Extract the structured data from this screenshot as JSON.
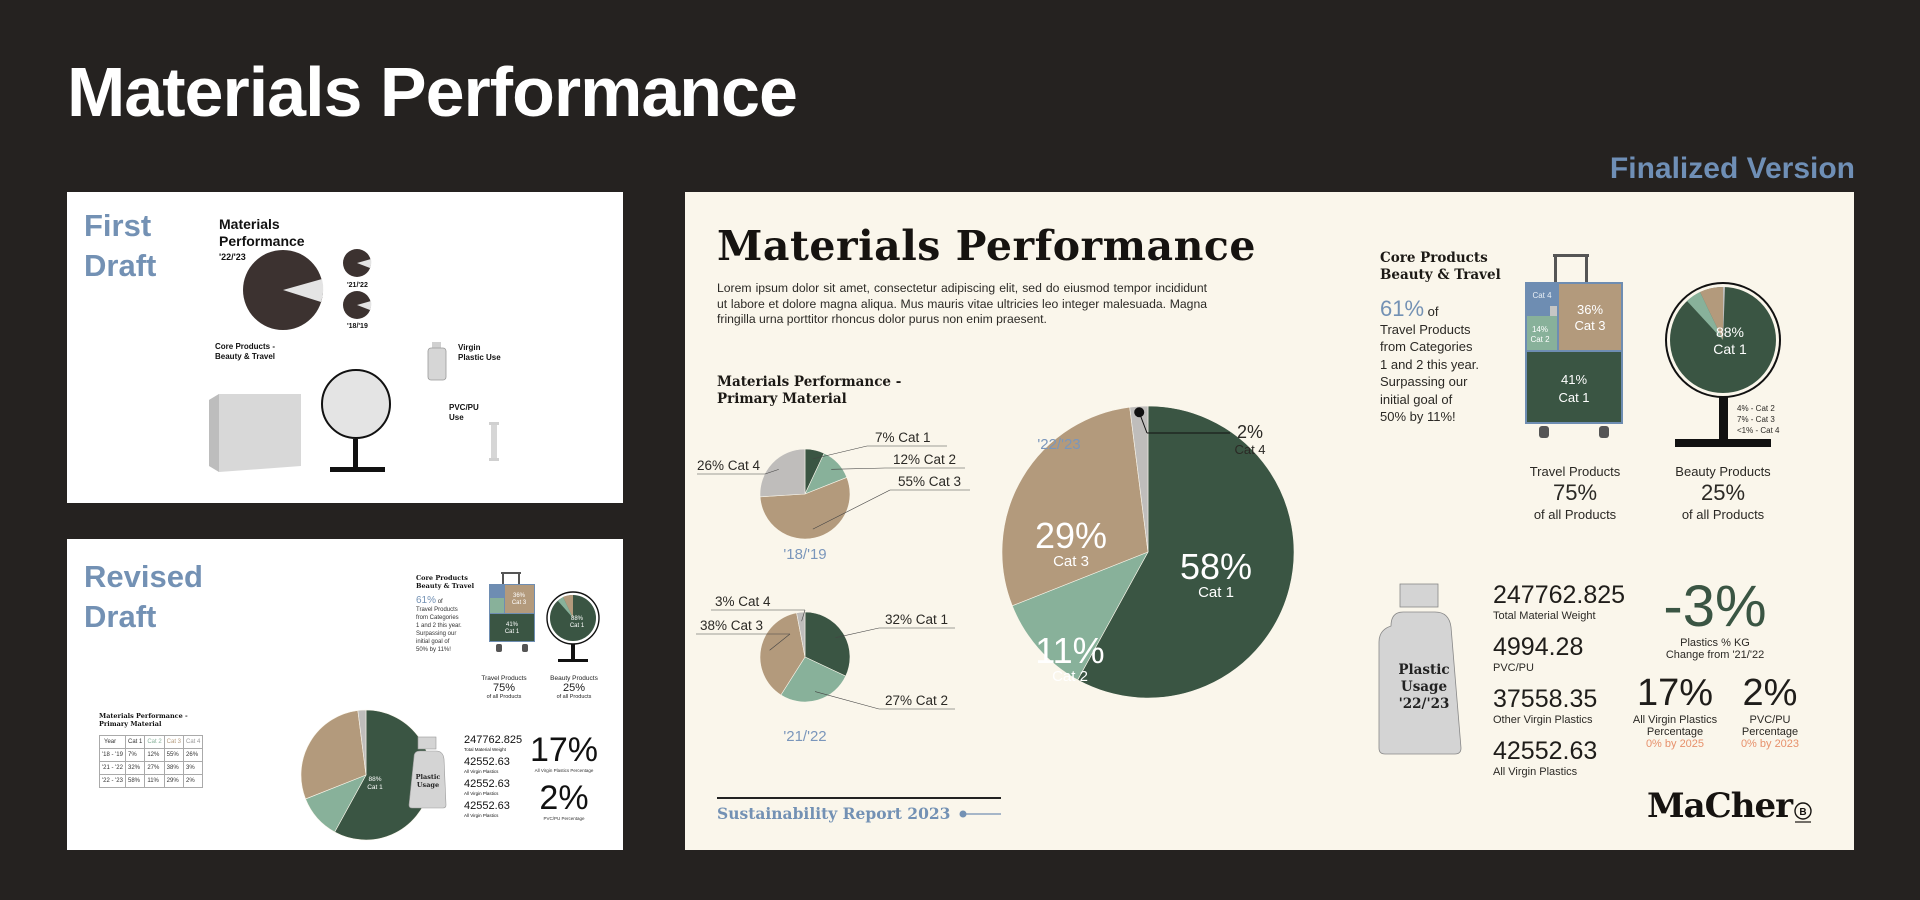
{
  "page": {
    "title": "Materials Performance",
    "finalized_label": "Finalized Version",
    "first_draft_label": [
      "First",
      "Draft"
    ],
    "revised_draft_label": [
      "Revised",
      "Draft"
    ]
  },
  "first_draft": {
    "title": [
      "Materials",
      "Performance"
    ],
    "year_main": "'22/'23",
    "year_a": "'21/'22",
    "year_b": "'18/'19",
    "core_products": [
      "Core Products -",
      "Beauty & Travel"
    ],
    "virgin_plastic": [
      "Virgin",
      "Plastic Use"
    ],
    "pvc_pu": [
      "PVC/PU",
      "Use"
    ]
  },
  "revised_draft": {
    "core_title": [
      "Core Products",
      "Beauty & Travel"
    ],
    "pct_61": "61%",
    "pct_61_rest": "of",
    "travel_desc": [
      "Travel Products",
      "from Categories",
      "1 and 2 this year.",
      "Surpassing  our",
      "initial   goal   of",
      "50% by 11%!"
    ],
    "bag_cat3": [
      "36%",
      "Cat 3"
    ],
    "bag_cat1": [
      "41%",
      "Cat 1"
    ],
    "mirror_pct": [
      "88%",
      "Cat 1"
    ],
    "travel_label": "Travel Products",
    "travel_pct": "75%",
    "travel_sub": "of all Products",
    "beauty_label": "Beauty Products",
    "beauty_pct": "25%",
    "beauty_sub": "of all Products",
    "table_title": [
      "Materials Performance -",
      "Primary Material"
    ],
    "table_header": [
      "Year",
      "Cat 1",
      "Cat 2",
      "Cat 3",
      "Cat 4"
    ],
    "table_rows": [
      [
        "'18 - '19",
        "7%",
        "12%",
        "55%",
        "26%"
      ],
      [
        "'21 - '22",
        "32%",
        "27%",
        "38%",
        "3%"
      ],
      [
        "'22 - '23",
        "58%",
        "11%",
        "29%",
        "2%"
      ]
    ],
    "pie_label": [
      "88%",
      "Cat 1"
    ],
    "bottle_label": [
      "Plastic",
      "Usage"
    ],
    "stats": [
      {
        "value": "247762.825",
        "label": "Total Material Weight"
      },
      {
        "value": "42552.63",
        "label": "All Virgin Plastics"
      },
      {
        "value": "42552.63",
        "label": "All Virgin Plastics"
      },
      {
        "value": "42552.63",
        "label": "All Virgin Plastics"
      }
    ],
    "big1": "17%",
    "big1_label": "All Virgin Plastics Percentage",
    "big2": "2%",
    "big2_label": "PVC/PU Percentage"
  },
  "final": {
    "title": "Materials Performance",
    "lorem": "Lorem ipsum dolor sit amet, consectetur adipiscing elit, sed do eiusmod tempor incididunt ut labore et dolore magna aliqua. Mus mauris vitae ultricies leo integer malesuada. Magna fringilla urna porttitor rhoncus dolor purus non enim praesent.",
    "primary_title": [
      "Materials Performance -",
      "Primary Material"
    ],
    "footer": "Sustainability Report 2023",
    "logo": "MaCher",
    "core_title": [
      "Core Products",
      "Beauty & Travel"
    ],
    "pct_61": "61%",
    "pct_61_rest": "of",
    "travel_desc": [
      "Travel Products",
      "from Categories",
      "1 and 2 this year.",
      "Surpassing  our",
      "initial   goal   of",
      "50% by 11%!"
    ],
    "bag": {
      "cat4": "Cat 4",
      "cat3": [
        "36%",
        "Cat 3"
      ],
      "cat2": [
        "14%",
        "Cat 2"
      ],
      "cat1": [
        "41%",
        "Cat 1"
      ]
    },
    "mirror": {
      "main": [
        "88%",
        "Cat 1"
      ],
      "legend": [
        "4% - Cat 2",
        "7% - Cat 3",
        "<1% - Cat 4"
      ]
    },
    "travel_label": "Travel Products",
    "travel_pct": "75%",
    "travel_sub": "of all Products",
    "beauty_label": "Beauty Products",
    "beauty_pct": "25%",
    "beauty_sub": "of all Products",
    "bottle_label": [
      "Plastic",
      "Usage",
      "'22/'23"
    ],
    "stats": [
      {
        "value": "247762.825",
        "label": "Total Material Weight"
      },
      {
        "value": "4994.28",
        "label": "PVC/PU"
      },
      {
        "value": "37558.35",
        "label": "Other Virgin Plastics"
      },
      {
        "value": "42552.63",
        "label": "All Virgin Plastics"
      }
    ],
    "change_value": "-3%",
    "change_label": [
      "Plastics % KG",
      "Change from '21/'22"
    ],
    "virgin_pct": "17%",
    "virgin_label": [
      "All Virgin Plastics",
      "Percentage"
    ],
    "virgin_target": "0% by 2025",
    "pvc_pct": "2%",
    "pvc_label": [
      "PVC/PU",
      "Percentage"
    ],
    "pvc_target": "0% by 2023"
  },
  "colors": {
    "cat1": "#3a5543",
    "cat2": "#88b19a",
    "cat3": "#b39a7c",
    "cat4": "#bfbdbb",
    "accent_blue": "#7391b4",
    "cream": "#faf6eb"
  },
  "chart_data": [
    {
      "type": "pie",
      "title": "'18/'19",
      "categories": [
        "Cat 1",
        "Cat 2",
        "Cat 3",
        "Cat 4"
      ],
      "values": [
        7,
        12,
        55,
        26
      ],
      "labels": [
        "7% Cat 1",
        "12% Cat 2",
        "55% Cat 3",
        "26% Cat 4"
      ]
    },
    {
      "type": "pie",
      "title": "'21/'22",
      "categories": [
        "Cat 1",
        "Cat 2",
        "Cat 3",
        "Cat 4"
      ],
      "values": [
        32,
        27,
        38,
        3
      ],
      "labels": [
        "32% Cat 1",
        "27% Cat 2",
        "38% Cat 3",
        "3% Cat 4"
      ]
    },
    {
      "type": "pie",
      "title": "'22/'23",
      "categories": [
        "Cat 1",
        "Cat 2",
        "Cat 3",
        "Cat 4"
      ],
      "values": [
        58,
        11,
        29,
        2
      ],
      "labels": [
        "58%",
        "11%",
        "29%",
        "2%"
      ],
      "sublabels": [
        "Cat 1",
        "Cat 2",
        "Cat 3",
        "Cat 4"
      ]
    }
  ]
}
